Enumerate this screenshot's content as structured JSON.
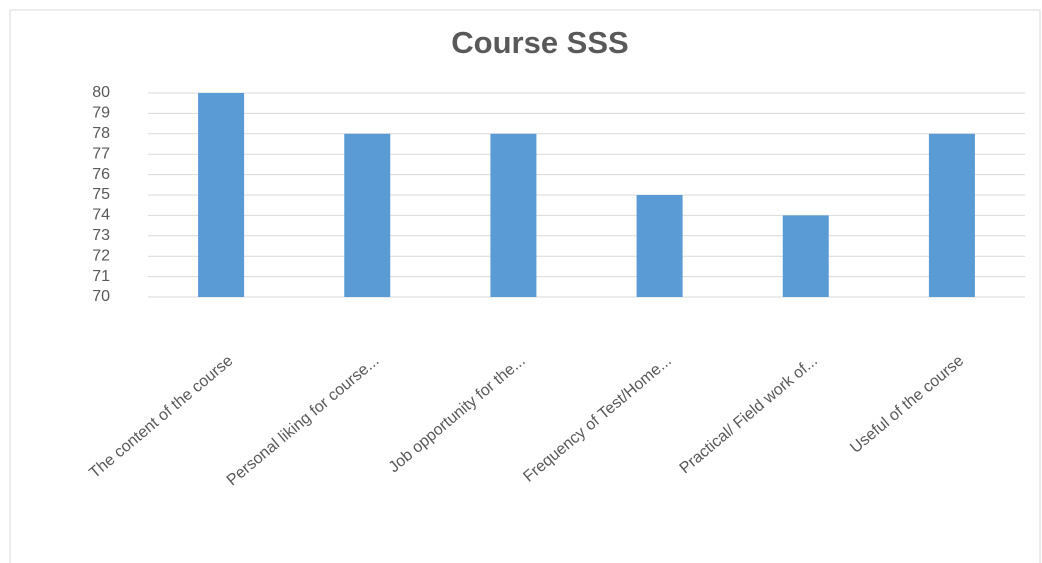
{
  "chart_data": {
    "type": "bar",
    "title": "Course SSS",
    "categories": [
      "The content of the course",
      "Personal liking for course...",
      "Job opportunity for the...",
      "Frequency of Test/Home...",
      "Practical/ Field work of...",
      "Useful of the course"
    ],
    "values": [
      80,
      78,
      78,
      75,
      74,
      78
    ],
    "color": "#5b9bd5",
    "ylim": [
      70,
      80
    ],
    "yticks": [
      70,
      71,
      72,
      73,
      74,
      75,
      76,
      77,
      78,
      79,
      80
    ],
    "grid": true
  }
}
